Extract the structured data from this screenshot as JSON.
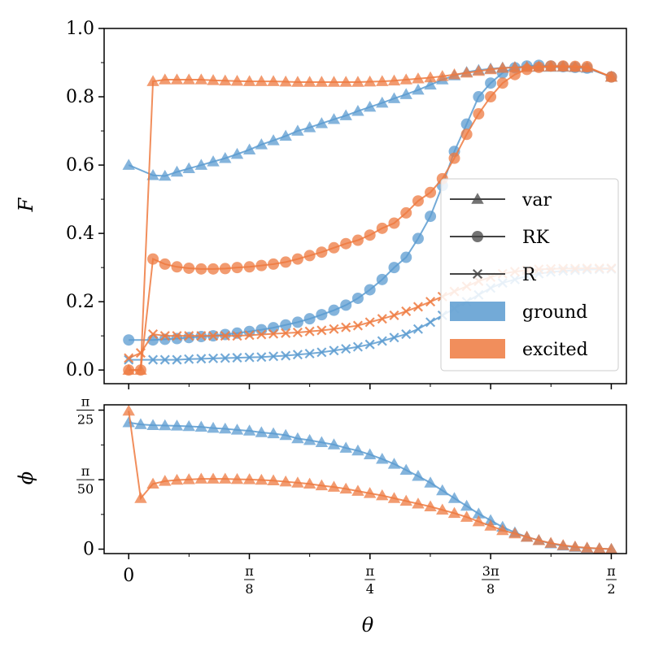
{
  "chart_data": [
    {
      "type": "line",
      "panel": "top",
      "ylabel": "F",
      "ylim": [
        -0.04,
        1.0
      ],
      "yticks": [
        {
          "value": 0.0,
          "label": "0.0"
        },
        {
          "value": 0.2,
          "label": "0.2"
        },
        {
          "value": 0.4,
          "label": "0.4"
        },
        {
          "value": 0.6,
          "label": "0.6"
        },
        {
          "value": 0.8,
          "label": "0.8"
        },
        {
          "value": 1.0,
          "label": "1.0"
        }
      ],
      "x": [
        0,
        0.039,
        0.079,
        0.118,
        0.157,
        0.196,
        0.236,
        0.275,
        0.314,
        0.353,
        0.393,
        0.432,
        0.471,
        0.511,
        0.55,
        0.589,
        0.628,
        0.668,
        0.707,
        0.746,
        0.785,
        0.825,
        0.864,
        0.903,
        0.942,
        0.982,
        1.021,
        1.06,
        1.1,
        1.139,
        1.178,
        1.217,
        1.257,
        1.296,
        1.335,
        1.374,
        1.414,
        1.453,
        1.492,
        1.532,
        1.571
      ],
      "series": [
        {
          "name": "ground var",
          "group": "ground",
          "marker": "triangle",
          "line": true,
          "values": [
            0.6,
            null,
            0.57,
            0.568,
            0.58,
            0.59,
            0.6,
            0.61,
            0.62,
            0.632,
            0.645,
            0.66,
            0.672,
            0.685,
            0.7,
            0.71,
            0.722,
            0.734,
            0.745,
            0.758,
            0.77,
            0.782,
            0.795,
            0.807,
            0.82,
            0.835,
            0.85,
            0.862,
            0.872,
            0.878,
            0.882,
            0.885,
            0.886,
            0.887,
            0.887,
            0.887,
            0.887,
            0.886,
            0.884,
            null,
            0.858
          ]
        },
        {
          "name": "ground RK",
          "group": "ground",
          "marker": "circle",
          "line": true,
          "values": [
            0.088,
            null,
            0.088,
            0.09,
            0.092,
            0.095,
            0.098,
            0.1,
            0.104,
            0.108,
            0.113,
            0.118,
            0.124,
            0.132,
            0.14,
            0.15,
            0.162,
            0.175,
            0.19,
            0.21,
            0.235,
            0.265,
            0.3,
            0.33,
            0.385,
            0.45,
            0.54,
            0.64,
            0.72,
            0.8,
            0.84,
            0.87,
            0.885,
            0.89,
            0.892,
            0.89,
            0.888,
            0.886,
            0.884,
            null,
            0.858
          ]
        },
        {
          "name": "ground R",
          "group": "ground",
          "marker": "cross",
          "line": true,
          "values": [
            0.03,
            null,
            0.03,
            0.03,
            0.03,
            0.032,
            0.033,
            0.034,
            0.035,
            0.036,
            0.037,
            0.038,
            0.04,
            0.042,
            0.045,
            0.048,
            0.052,
            0.057,
            0.062,
            0.068,
            0.075,
            0.085,
            0.095,
            0.105,
            0.12,
            0.14,
            0.16,
            0.18,
            0.2,
            0.22,
            0.24,
            0.255,
            0.265,
            0.275,
            0.282,
            0.287,
            0.29,
            0.292,
            0.294,
            0.295,
            0.296
          ]
        },
        {
          "name": "excited var",
          "group": "excited",
          "marker": "triangle",
          "line": true,
          "values": [
            0.0,
            0.0,
            0.845,
            0.85,
            0.85,
            0.85,
            0.85,
            0.848,
            0.847,
            0.846,
            0.845,
            0.845,
            0.845,
            0.844,
            0.843,
            0.843,
            0.843,
            0.843,
            0.843,
            0.843,
            0.844,
            0.845,
            0.847,
            0.85,
            0.853,
            0.856,
            0.86,
            0.865,
            0.87,
            0.875,
            0.88,
            0.884,
            0.886,
            0.887,
            0.888,
            0.888,
            0.888,
            0.887,
            0.886,
            null,
            0.858
          ]
        },
        {
          "name": "excited RK",
          "group": "excited",
          "marker": "circle",
          "line": true,
          "values": [
            0.0,
            0.0,
            0.325,
            0.31,
            0.302,
            0.298,
            0.296,
            0.296,
            0.297,
            0.3,
            0.302,
            0.306,
            0.31,
            0.316,
            0.325,
            0.335,
            0.345,
            0.358,
            0.37,
            0.38,
            0.395,
            0.415,
            0.43,
            0.46,
            0.495,
            0.52,
            0.56,
            0.62,
            0.69,
            0.75,
            0.8,
            0.84,
            0.865,
            0.88,
            0.886,
            0.89,
            0.89,
            0.889,
            0.888,
            null,
            0.858
          ]
        },
        {
          "name": "excited R",
          "group": "excited",
          "marker": "cross",
          "line": true,
          "values": [
            0.035,
            0.05,
            0.105,
            0.1,
            0.1,
            0.1,
            0.1,
            0.1,
            0.1,
            0.1,
            0.102,
            0.104,
            0.106,
            0.108,
            0.11,
            0.113,
            0.116,
            0.12,
            0.125,
            0.13,
            0.14,
            0.15,
            0.16,
            0.172,
            0.185,
            0.2,
            0.215,
            0.23,
            0.245,
            0.26,
            0.272,
            0.282,
            0.288,
            0.292,
            0.295,
            0.296,
            0.297,
            0.297,
            0.298,
            0.298,
            0.298
          ]
        }
      ]
    },
    {
      "type": "line",
      "panel": "bottom",
      "xlabel": "θ",
      "ylabel": "ϕ",
      "xlim": [
        -0.08,
        1.62
      ],
      "ylim": [
        -0.004,
        0.1305
      ],
      "yticks": [
        {
          "value": 0,
          "label": "0"
        },
        {
          "value": 0.0628,
          "label_num": "π",
          "label_den": "50"
        },
        {
          "value": 0.1257,
          "label_num": "π",
          "label_den": "25"
        }
      ],
      "xticks": [
        {
          "value": 0,
          "label": "0"
        },
        {
          "value": 0.3927,
          "label_num": "π",
          "label_den": "8"
        },
        {
          "value": 0.7854,
          "label_num": "π",
          "label_den": "4"
        },
        {
          "value": 1.1781,
          "label_num": "3π",
          "label_den": "8"
        },
        {
          "value": 1.5708,
          "label_num": "π",
          "label_den": "2"
        }
      ],
      "x": [
        0,
        0.039,
        0.079,
        0.118,
        0.157,
        0.196,
        0.236,
        0.275,
        0.314,
        0.353,
        0.393,
        0.432,
        0.471,
        0.511,
        0.55,
        0.589,
        0.628,
        0.668,
        0.707,
        0.746,
        0.785,
        0.825,
        0.864,
        0.903,
        0.942,
        0.982,
        1.021,
        1.06,
        1.1,
        1.139,
        1.178,
        1.217,
        1.257,
        1.296,
        1.335,
        1.374,
        1.414,
        1.453,
        1.492,
        1.532,
        1.571
      ],
      "series": [
        {
          "name": "ground var",
          "group": "ground",
          "marker": "triangle",
          "values": [
            0.1145,
            0.1128,
            0.112,
            0.1118,
            0.1115,
            0.111,
            0.1105,
            0.1095,
            0.1088,
            0.1078,
            0.107,
            0.1055,
            0.1045,
            0.103,
            0.1,
            0.0985,
            0.0965,
            0.0945,
            0.0915,
            0.089,
            0.0855,
            0.0815,
            0.077,
            0.0715,
            0.066,
            0.06,
            0.053,
            0.046,
            0.039,
            0.032,
            0.026,
            0.02,
            0.015,
            0.011,
            0.008,
            0.005,
            0.003,
            0.0018,
            0.001,
            0.0005,
            0.0
          ]
        },
        {
          "name": "excited var",
          "group": "excited",
          "marker": "triangle",
          "values": [
            0.125,
            0.046,
            0.059,
            0.0615,
            0.0625,
            0.063,
            0.0635,
            0.0635,
            0.0635,
            0.0632,
            0.063,
            0.0625,
            0.062,
            0.061,
            0.06,
            0.059,
            0.0575,
            0.0562,
            0.0545,
            0.0525,
            0.0505,
            0.0485,
            0.046,
            0.0435,
            0.041,
            0.0385,
            0.0355,
            0.0325,
            0.029,
            0.025,
            0.021,
            0.017,
            0.014,
            0.011,
            0.008,
            0.0055,
            0.0035,
            0.0022,
            0.0012,
            0.0006,
            0.0
          ]
        }
      ]
    }
  ],
  "legend": {
    "entries": [
      {
        "label": "var",
        "marker": "triangle",
        "kind": "line"
      },
      {
        "label": "RK",
        "marker": "circle",
        "kind": "line"
      },
      {
        "label": "R",
        "marker": "cross",
        "kind": "line"
      },
      {
        "label": "ground",
        "kind": "patch",
        "color": "#5b9bd0"
      },
      {
        "label": "excited",
        "kind": "patch",
        "color": "#ee7a40"
      }
    ]
  },
  "colors": {
    "ground": "#5b9bd0",
    "excited": "#ee7a40",
    "legend_marker": "#444444"
  }
}
